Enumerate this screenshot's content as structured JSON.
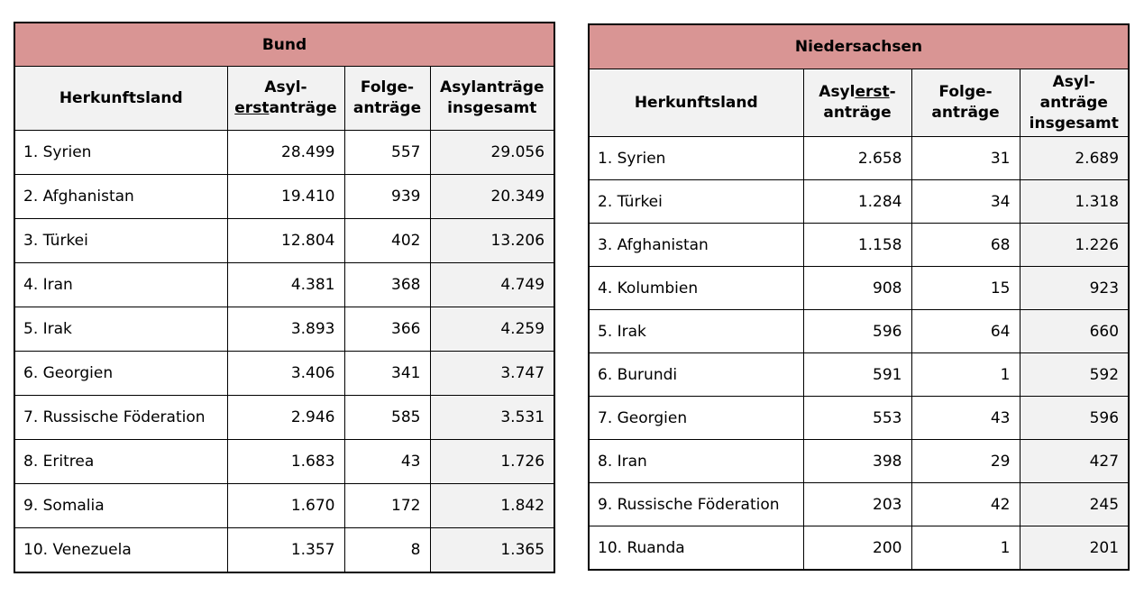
{
  "bund": {
    "title": "Bund",
    "headers": {
      "country": "Herkunftsland",
      "first_part1": "Asyl-",
      "first_part2": "erst",
      "first_part3": "anträge",
      "follow_part1": "Folge-",
      "follow_part2": "anträge",
      "total_line1": "Asylanträge",
      "total_line2": "insgesamt"
    },
    "rows": [
      {
        "country": "1. Syrien",
        "first": "28.499",
        "follow": "557",
        "total": "29.056"
      },
      {
        "country": "2. Afghanistan",
        "first": "19.410",
        "follow": "939",
        "total": "20.349"
      },
      {
        "country": "3. Türkei",
        "first": "12.804",
        "follow": "402",
        "total": "13.206"
      },
      {
        "country": "4. Iran",
        "first": "4.381",
        "follow": "368",
        "total": "4.749"
      },
      {
        "country": "5. Irak",
        "first": "3.893",
        "follow": "366",
        "total": "4.259"
      },
      {
        "country": "6. Georgien",
        "first": "3.406",
        "follow": "341",
        "total": "3.747"
      },
      {
        "country": "7. Russische Föderation",
        "first": "2.946",
        "follow": "585",
        "total": "3.531"
      },
      {
        "country": "8. Eritrea",
        "first": "1.683",
        "follow": "43",
        "total": "1.726"
      },
      {
        "country": "9. Somalia",
        "first": "1.670",
        "follow": "172",
        "total": "1.842"
      },
      {
        "country": "10. Venezuela",
        "first": "1.357",
        "follow": "8",
        "total": "1.365"
      }
    ]
  },
  "niedersachsen": {
    "title": "Niedersachsen",
    "headers": {
      "country": "Herkunftsland",
      "first_part1": "Asyl",
      "first_part2": "erst",
      "first_part3": "-",
      "first_line2": "anträge",
      "follow_part1": "Folge-",
      "follow_part2": "anträge",
      "total_line1": "Asyl-",
      "total_line2": "anträge",
      "total_line3": "insgesamt"
    },
    "rows": [
      {
        "country": "1. Syrien",
        "first": "2.658",
        "follow": "31",
        "total": "2.689"
      },
      {
        "country": "2. Türkei",
        "first": "1.284",
        "follow": "34",
        "total": "1.318"
      },
      {
        "country": "3. Afghanistan",
        "first": "1.158",
        "follow": "68",
        "total": "1.226"
      },
      {
        "country": "4. Kolumbien",
        "first": "908",
        "follow": "15",
        "total": "923"
      },
      {
        "country": "5. Irak",
        "first": "596",
        "follow": "64",
        "total": "660"
      },
      {
        "country": "6. Burundi",
        "first": "591",
        "follow": "1",
        "total": "592"
      },
      {
        "country": "7. Georgien",
        "first": "553",
        "follow": "43",
        "total": "596"
      },
      {
        "country": "8. Iran",
        "first": "398",
        "follow": "29",
        "total": "427"
      },
      {
        "country": "9. Russische Föderation",
        "first": "203",
        "follow": "42",
        "total": "245"
      },
      {
        "country": "10. Ruanda",
        "first": "200",
        "follow": "1",
        "total": "201"
      }
    ]
  }
}
